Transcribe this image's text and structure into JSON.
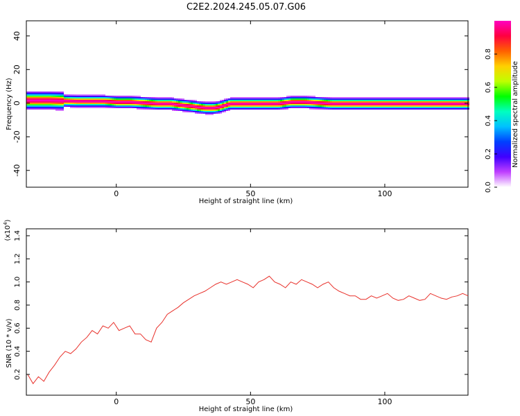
{
  "title": "C2E2.2024.245.05.07.G06",
  "chart_data": [
    {
      "type": "heatmap",
      "xlabel": "Height of straight line (km)",
      "ylabel": "Frequency (Hz)",
      "xlim": [
        -33.5,
        131
      ],
      "ylim": [
        -50,
        49
      ],
      "xticks": [
        0,
        50,
        100
      ],
      "xtick_labels": [
        "0",
        "50",
        "100"
      ],
      "yticks": [
        -40,
        -20,
        0,
        20,
        40
      ],
      "ytick_labels": [
        "-40",
        "-20",
        "0",
        "20",
        "40"
      ],
      "colorbar": {
        "label": "Normalized spectral amplitude",
        "ticks": [
          0.0,
          0.2,
          0.4,
          0.6,
          0.8
        ],
        "tick_labels": [
          "0.0",
          "0.2",
          "0.4",
          "0.6",
          "0.8"
        ],
        "range": [
          0,
          1
        ],
        "colors": [
          "#ffffff",
          "#c040ff",
          "#4000ff",
          "#0040ff",
          "#00c0ff",
          "#00ffc0",
          "#00ff00",
          "#c0ff00",
          "#ffd000",
          "#ff6000",
          "#ff0040",
          "#ff00c0"
        ]
      },
      "ridge": {
        "x": [
          -33,
          -25,
          -15,
          -5,
          0,
          5,
          10,
          15,
          20,
          25,
          28,
          30,
          33,
          36,
          38,
          40,
          42,
          45,
          50,
          55,
          60,
          65,
          70,
          80,
          90,
          100,
          110,
          120,
          125,
          130
        ],
        "frequency": [
          2,
          2,
          1.5,
          1.5,
          1,
          1,
          0.5,
          0,
          0,
          -1,
          -1.5,
          -2,
          -2.5,
          -2.5,
          -2,
          -1,
          0,
          0,
          0,
          0,
          0,
          1,
          1,
          0,
          0,
          0,
          0,
          0,
          0,
          0
        ]
      }
    },
    {
      "type": "line",
      "xlabel": "Height of straight line (km)",
      "ylabel": "SNR (10 * v/v)",
      "y_multiplier": "(x10",
      "y_multiplier_exp": "4",
      "xlim": [
        -33.5,
        131
      ],
      "ylim": [
        0.02,
        1.46
      ],
      "xticks": [
        0,
        50,
        100
      ],
      "xtick_labels": [
        "0",
        "50",
        "100"
      ],
      "yticks": [
        0.2,
        0.4,
        0.6,
        0.8,
        1.0,
        1.2,
        1.4
      ],
      "ytick_labels": [
        "0.2",
        "0.4",
        "0.6",
        "0.8",
        "1.0",
        "1.2",
        "1.4"
      ],
      "color": "#e8302a",
      "series": [
        {
          "x": [
            -33,
            -31,
            -29,
            -27,
            -25,
            -23,
            -21,
            -19,
            -17,
            -15,
            -13,
            -11,
            -9,
            -7,
            -5,
            -3,
            -1,
            1,
            3,
            5,
            7,
            9,
            11,
            13,
            15,
            17,
            19,
            21,
            23,
            25,
            27,
            29,
            31,
            33,
            35,
            37,
            39,
            41,
            43,
            45,
            47,
            49,
            51,
            53,
            55,
            57,
            59,
            61,
            63,
            65,
            67,
            69,
            71,
            73,
            75,
            77,
            79,
            81,
            83,
            85,
            87,
            89,
            91,
            93,
            95,
            97,
            99,
            101,
            103,
            105,
            107,
            109,
            111,
            113,
            115,
            117,
            119,
            121,
            123,
            125,
            127,
            129,
            131
          ],
          "values": [
            0.2,
            0.12,
            0.18,
            0.14,
            0.22,
            0.28,
            0.35,
            0.4,
            0.38,
            0.42,
            0.48,
            0.52,
            0.58,
            0.55,
            0.62,
            0.6,
            0.65,
            0.58,
            0.6,
            0.62,
            0.55,
            0.55,
            0.5,
            0.48,
            0.6,
            0.65,
            0.72,
            0.75,
            0.78,
            0.82,
            0.85,
            0.88,
            0.9,
            0.92,
            0.95,
            0.98,
            1.0,
            0.98,
            1.0,
            1.02,
            1.0,
            0.98,
            0.95,
            1.0,
            1.02,
            1.05,
            1.0,
            0.98,
            0.95,
            1.0,
            0.98,
            1.02,
            1.0,
            0.98,
            0.95,
            0.98,
            1.0,
            0.95,
            0.92,
            0.9,
            0.88,
            0.88,
            0.85,
            0.85,
            0.88,
            0.86,
            0.88,
            0.9,
            0.86,
            0.84,
            0.85,
            0.88,
            0.86,
            0.84,
            0.85,
            0.9,
            0.88,
            0.86,
            0.85,
            0.87,
            0.88,
            0.9,
            0.88
          ]
        }
      ]
    }
  ]
}
